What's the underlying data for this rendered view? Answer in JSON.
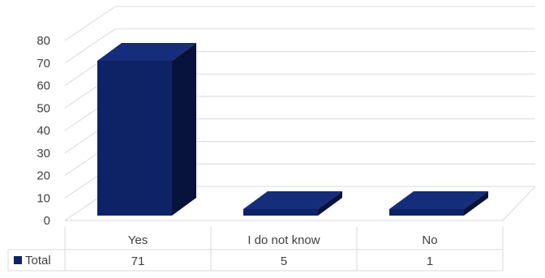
{
  "chart_data": {
    "type": "bar",
    "style": "3d-column-with-data-table",
    "categories": [
      "Yes",
      "I do not know",
      "No"
    ],
    "series": [
      {
        "name": "Total",
        "values": [
          71,
          5,
          1
        ],
        "color": "#0e2266"
      }
    ],
    "ylim": [
      0,
      80
    ],
    "yticks": [
      0,
      10,
      20,
      30,
      40,
      50,
      60,
      70,
      80
    ],
    "grid": true,
    "legend": "data-table-left",
    "colors": {
      "bar_front": "#0e2266",
      "bar_top": "#152d7a",
      "bar_side": "#07123d",
      "grid": "#d9d9d9",
      "text": "#404040"
    }
  }
}
